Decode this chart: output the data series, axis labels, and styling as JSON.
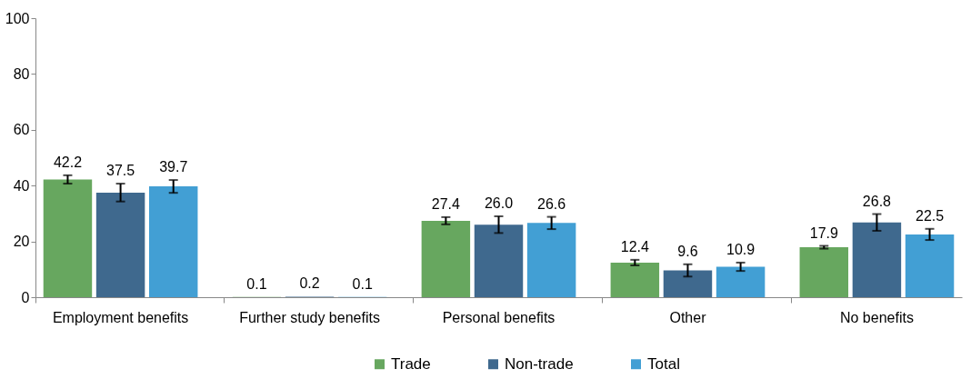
{
  "chart_data": {
    "type": "bar",
    "categories": [
      "Employment benefits",
      "Further study benefits",
      "Personal benefits",
      "Other",
      "No benefits"
    ],
    "series": [
      {
        "name": "Trade",
        "color": "#67a75f",
        "values": [
          42.2,
          0.1,
          27.4,
          12.4,
          17.9
        ],
        "value_labels": [
          "42.2",
          "0.1",
          "27.4",
          "12.4",
          "17.9"
        ],
        "errors": [
          1.5,
          null,
          1.3,
          1.0,
          0.5
        ]
      },
      {
        "name": "Non-trade",
        "color": "#3f698e",
        "values": [
          37.5,
          0.2,
          26.0,
          9.6,
          26.8
        ],
        "value_labels": [
          "37.5",
          "0.2",
          "26.0",
          "9.6",
          "26.8"
        ],
        "errors": [
          3.2,
          null,
          3.0,
          2.2,
          3.0
        ]
      },
      {
        "name": "Total",
        "color": "#429fd4",
        "values": [
          39.7,
          0.1,
          26.6,
          10.9,
          22.5
        ],
        "value_labels": [
          "39.7",
          "0.1",
          "26.6",
          "10.9",
          "22.5"
        ],
        "errors": [
          2.3,
          null,
          2.2,
          1.5,
          2.0
        ]
      }
    ],
    "ylim": [
      0,
      100
    ],
    "yticks": [
      0,
      20,
      40,
      60,
      80,
      100
    ],
    "grid": false,
    "legend": "bottom"
  }
}
